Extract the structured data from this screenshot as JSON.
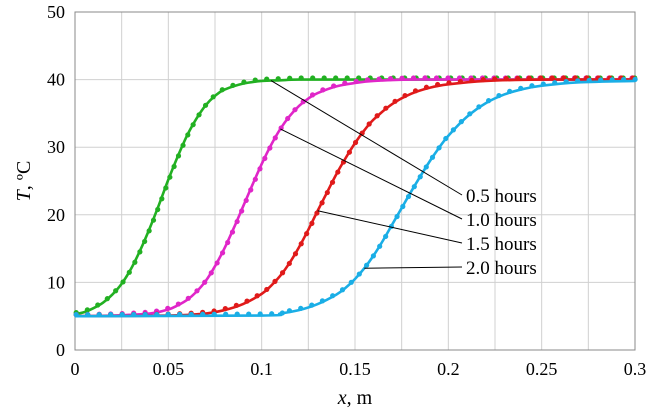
{
  "chart_data": {
    "type": "line",
    "xlabel_var": "x",
    "xlabel_unit": ", m",
    "ylabel_var": "T",
    "ylabel_unit": ", ºC",
    "xlim": [
      0,
      0.3
    ],
    "ylim": [
      0,
      50
    ],
    "xticks": [
      "0",
      "0.05",
      "0.1",
      "0.15",
      "0.2",
      "0.25",
      "0.3"
    ],
    "yticks": [
      "0",
      "10",
      "20",
      "30",
      "40",
      "50"
    ],
    "grid": true,
    "line_style": "solid curves with dotted markers",
    "series": [
      {
        "name": "0.5 hours",
        "color": "#22b022",
        "points": [
          [
            0.0,
            5.3
          ],
          [
            0.005,
            5.6
          ],
          [
            0.01,
            6.2
          ],
          [
            0.015,
            7.0
          ],
          [
            0.02,
            8.2
          ],
          [
            0.025,
            9.8
          ],
          [
            0.03,
            12.0
          ],
          [
            0.035,
            14.8
          ],
          [
            0.04,
            18.0
          ],
          [
            0.045,
            21.5
          ],
          [
            0.05,
            25.2
          ],
          [
            0.055,
            28.6
          ],
          [
            0.06,
            31.7
          ],
          [
            0.065,
            34.2
          ],
          [
            0.07,
            36.2
          ],
          [
            0.075,
            37.6
          ],
          [
            0.08,
            38.5
          ],
          [
            0.09,
            39.4
          ],
          [
            0.1,
            39.8
          ],
          [
            0.11,
            39.9
          ],
          [
            0.12,
            40.0
          ],
          [
            0.15,
            40.0
          ],
          [
            0.2,
            40.0
          ],
          [
            0.25,
            40.0
          ],
          [
            0.3,
            40.0
          ]
        ]
      },
      {
        "name": "1.0 hours",
        "color": "#e026c8",
        "points": [
          [
            0.0,
            5.0
          ],
          [
            0.02,
            5.1
          ],
          [
            0.04,
            5.4
          ],
          [
            0.05,
            6.0
          ],
          [
            0.055,
            6.6
          ],
          [
            0.06,
            7.4
          ],
          [
            0.065,
            8.6
          ],
          [
            0.07,
            10.2
          ],
          [
            0.075,
            12.4
          ],
          [
            0.08,
            15.0
          ],
          [
            0.085,
            18.0
          ],
          [
            0.09,
            21.2
          ],
          [
            0.095,
            24.4
          ],
          [
            0.1,
            27.5
          ],
          [
            0.105,
            30.3
          ],
          [
            0.11,
            32.7
          ],
          [
            0.115,
            34.6
          ],
          [
            0.12,
            36.1
          ],
          [
            0.125,
            37.2
          ],
          [
            0.13,
            38.0
          ],
          [
            0.14,
            39.0
          ],
          [
            0.15,
            39.5
          ],
          [
            0.16,
            39.8
          ],
          [
            0.18,
            40.0
          ],
          [
            0.2,
            40.0
          ],
          [
            0.25,
            40.0
          ],
          [
            0.3,
            40.0
          ]
        ]
      },
      {
        "name": "1.5 hours",
        "color": "#e01a1a",
        "points": [
          [
            0.0,
            5.0
          ],
          [
            0.05,
            5.1
          ],
          [
            0.07,
            5.4
          ],
          [
            0.08,
            5.9
          ],
          [
            0.09,
            6.8
          ],
          [
            0.1,
            8.3
          ],
          [
            0.105,
            9.5
          ],
          [
            0.11,
            11.0
          ],
          [
            0.115,
            12.9
          ],
          [
            0.12,
            15.2
          ],
          [
            0.125,
            17.8
          ],
          [
            0.13,
            20.6
          ],
          [
            0.135,
            23.3
          ],
          [
            0.14,
            26.0
          ],
          [
            0.145,
            28.4
          ],
          [
            0.15,
            30.6
          ],
          [
            0.155,
            32.5
          ],
          [
            0.16,
            34.1
          ],
          [
            0.17,
            36.4
          ],
          [
            0.18,
            37.9
          ],
          [
            0.19,
            38.8
          ],
          [
            0.2,
            39.3
          ],
          [
            0.22,
            39.8
          ],
          [
            0.25,
            40.0
          ],
          [
            0.3,
            40.0
          ]
        ]
      },
      {
        "name": "2.0 hours",
        "color": "#1aaee6",
        "points": [
          [
            0.0,
            5.0
          ],
          [
            0.1,
            5.1
          ],
          [
            0.11,
            5.4
          ],
          [
            0.12,
            5.9
          ],
          [
            0.13,
            6.8
          ],
          [
            0.14,
            8.2
          ],
          [
            0.145,
            9.2
          ],
          [
            0.15,
            10.5
          ],
          [
            0.155,
            12.1
          ],
          [
            0.16,
            14.0
          ],
          [
            0.165,
            16.2
          ],
          [
            0.17,
            18.6
          ],
          [
            0.175,
            21.0
          ],
          [
            0.18,
            23.4
          ],
          [
            0.185,
            25.7
          ],
          [
            0.19,
            27.9
          ],
          [
            0.195,
            29.9
          ],
          [
            0.2,
            31.7
          ],
          [
            0.21,
            34.5
          ],
          [
            0.22,
            36.5
          ],
          [
            0.23,
            37.8
          ],
          [
            0.24,
            38.6
          ],
          [
            0.25,
            39.1
          ],
          [
            0.27,
            39.6
          ],
          [
            0.3,
            39.8
          ]
        ]
      }
    ],
    "annotations": [
      {
        "label": "0.5 hours",
        "series": 0,
        "at_x": 0.105
      },
      {
        "label": "1.0 hours",
        "series": 1,
        "at_x": 0.11
      },
      {
        "label": "1.5 hours",
        "series": 2,
        "at_x": 0.13
      },
      {
        "label": "2.0 hours",
        "series": 3,
        "at_x": 0.155
      }
    ]
  }
}
